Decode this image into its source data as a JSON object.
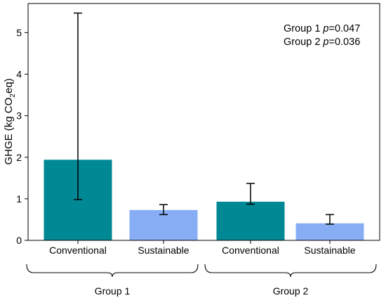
{
  "chart_data": {
    "type": "bar",
    "categories": [
      "Conventional",
      "Sustainable",
      "Conventional",
      "Sustainable"
    ],
    "groups": [
      {
        "label": "Group 1",
        "categories": [
          "Conventional",
          "Sustainable"
        ]
      },
      {
        "label": "Group 2",
        "categories": [
          "Conventional",
          "Sustainable"
        ]
      }
    ],
    "values": [
      1.94,
      0.73,
      0.93,
      0.41
    ],
    "error_low": [
      0.98,
      0.62,
      0.87,
      0.39
    ],
    "error_high": [
      5.47,
      0.86,
      1.37,
      0.62
    ],
    "colors": [
      "#008894",
      "#87aef5",
      "#008894",
      "#87aef5"
    ],
    "ylabel_prefix": "GHGE (kg CO",
    "ylabel_sub": "2",
    "ylabel_suffix": "eq)",
    "ylim": [
      0,
      5.7
    ],
    "yticks": [
      0,
      1,
      2,
      3,
      4,
      5
    ],
    "annotations": [
      {
        "prefix": "Group 1 ",
        "italic": "p",
        "value": "=0.047"
      },
      {
        "prefix": "Group 2 ",
        "italic": "p",
        "value": "=0.036"
      }
    ]
  }
}
